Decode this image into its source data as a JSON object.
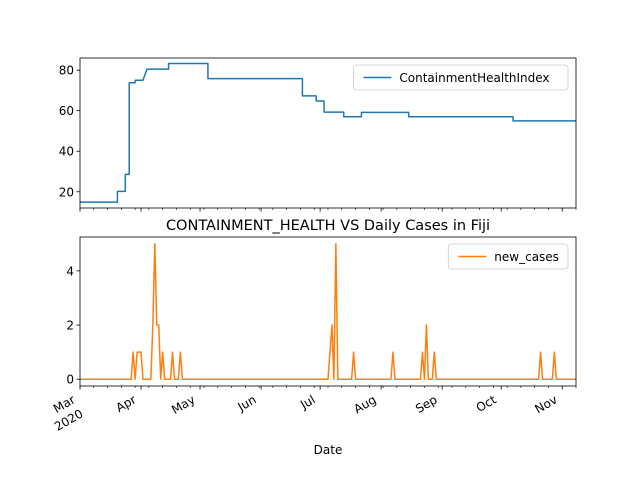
{
  "chart_data": [
    {
      "type": "line",
      "series": [
        {
          "name": "ContainmentHealthIndex",
          "color": "#1f77b4",
          "points": [
            [
              "2020-03-01",
              14.9
            ],
            [
              "2020-03-20",
              14.9
            ],
            [
              "2020-03-20",
              20.2
            ],
            [
              "2020-03-24",
              20.2
            ],
            [
              "2020-03-24",
              28.6
            ],
            [
              "2020-03-26",
              28.6
            ],
            [
              "2020-03-26",
              73.8
            ],
            [
              "2020-03-29",
              73.8
            ],
            [
              "2020-03-29",
              75.0
            ],
            [
              "2020-04-02",
              75.0
            ],
            [
              "2020-04-04",
              80.5
            ],
            [
              "2020-04-15",
              80.5
            ],
            [
              "2020-04-15",
              83.3
            ],
            [
              "2020-05-05",
              83.3
            ],
            [
              "2020-05-05",
              75.8
            ],
            [
              "2020-06-22",
              75.8
            ],
            [
              "2020-06-22",
              67.3
            ],
            [
              "2020-06-29",
              67.3
            ],
            [
              "2020-06-29",
              64.8
            ],
            [
              "2020-07-03",
              64.8
            ],
            [
              "2020-07-03",
              59.3
            ],
            [
              "2020-07-13",
              59.3
            ],
            [
              "2020-07-13",
              57.0
            ],
            [
              "2020-07-22",
              57.0
            ],
            [
              "2020-07-22",
              59.2
            ],
            [
              "2020-08-15",
              59.2
            ],
            [
              "2020-08-15",
              57.0
            ],
            [
              "2020-10-07",
              57.0
            ],
            [
              "2020-10-07",
              55.0
            ],
            [
              "2020-11-08",
              55.0
            ]
          ]
        }
      ],
      "ylim": [
        12,
        86
      ],
      "yticks": [
        20,
        40,
        60,
        80
      ],
      "legend": "top-right"
    },
    {
      "type": "line",
      "title": "CONTAINMENT_HEALTH VS Daily Cases in Fiji",
      "xlabel": "Date",
      "series": [
        {
          "name": "new_cases",
          "color": "#ff7f0e",
          "points": [
            [
              "2020-03-01",
              0
            ],
            [
              "2020-03-27",
              0
            ],
            [
              "2020-03-28",
              1
            ],
            [
              "2020-03-29",
              0
            ],
            [
              "2020-03-30",
              1
            ],
            [
              "2020-04-01",
              1
            ],
            [
              "2020-04-02",
              0
            ],
            [
              "2020-04-06",
              0
            ],
            [
              "2020-04-07",
              2
            ],
            [
              "2020-04-08",
              5
            ],
            [
              "2020-04-09",
              2
            ],
            [
              "2020-04-10",
              2
            ],
            [
              "2020-04-11",
              0
            ],
            [
              "2020-04-12",
              1
            ],
            [
              "2020-04-13",
              0
            ],
            [
              "2020-04-16",
              0
            ],
            [
              "2020-04-17",
              1
            ],
            [
              "2020-04-18",
              0
            ],
            [
              "2020-04-20",
              0
            ],
            [
              "2020-04-21",
              1
            ],
            [
              "2020-04-22",
              0
            ],
            [
              "2020-07-05",
              0
            ],
            [
              "2020-07-07",
              2
            ],
            [
              "2020-07-08",
              0
            ],
            [
              "2020-07-09",
              5
            ],
            [
              "2020-07-10",
              0
            ],
            [
              "2020-07-17",
              0
            ],
            [
              "2020-07-18",
              1
            ],
            [
              "2020-07-19",
              0
            ],
            [
              "2020-08-06",
              0
            ],
            [
              "2020-08-07",
              1
            ],
            [
              "2020-08-08",
              0
            ],
            [
              "2020-08-21",
              0
            ],
            [
              "2020-08-22",
              1
            ],
            [
              "2020-08-23",
              0
            ],
            [
              "2020-08-24",
              2
            ],
            [
              "2020-08-25",
              0
            ],
            [
              "2020-08-27",
              0
            ],
            [
              "2020-08-28",
              1
            ],
            [
              "2020-08-29",
              0
            ],
            [
              "2020-10-20",
              0
            ],
            [
              "2020-10-21",
              1
            ],
            [
              "2020-10-22",
              0
            ],
            [
              "2020-10-27",
              0
            ],
            [
              "2020-10-28",
              1
            ],
            [
              "2020-10-29",
              0
            ],
            [
              "2020-11-08",
              0
            ]
          ]
        }
      ],
      "ylim": [
        -0.25,
        5.25
      ],
      "yticks": [
        0,
        2,
        4
      ],
      "legend": "top-right"
    }
  ],
  "xaxis": {
    "xlim": [
      "2020-03-01",
      "2020-11-08"
    ],
    "ticks": [
      {
        "date": "2020-03-01",
        "label": "Mar",
        "sub": "2020"
      },
      {
        "date": "2020-04-01",
        "label": "Apr"
      },
      {
        "date": "2020-05-01",
        "label": "May"
      },
      {
        "date": "2020-06-01",
        "label": "Jun"
      },
      {
        "date": "2020-07-01",
        "label": "Jul"
      },
      {
        "date": "2020-08-01",
        "label": "Aug"
      },
      {
        "date": "2020-09-01",
        "label": "Sep"
      },
      {
        "date": "2020-10-01",
        "label": "Oct"
      },
      {
        "date": "2020-11-01",
        "label": "Nov"
      }
    ]
  }
}
